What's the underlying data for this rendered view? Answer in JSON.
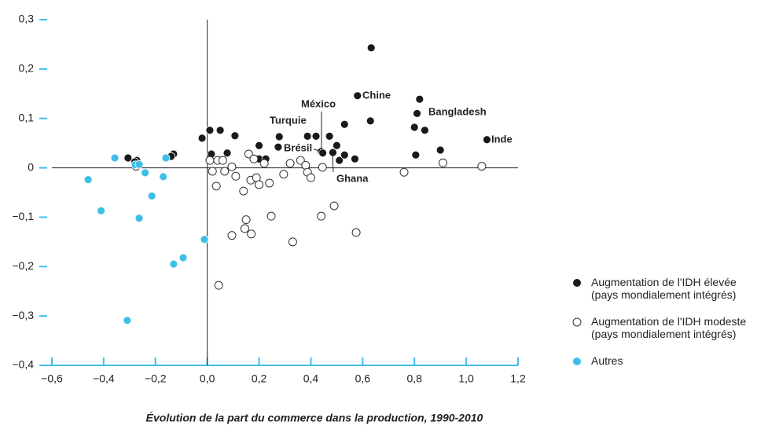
{
  "chart_data": {
    "type": "scatter",
    "xlabel": "Évolution de la part du commerce dans la production, 1990-2010",
    "xlim": [
      -0.6,
      1.2
    ],
    "xticks": [
      {
        "value": -0.6,
        "label": "−0,6"
      },
      {
        "value": -0.4,
        "label": "−0,4"
      },
      {
        "value": -0.2,
        "label": "−0,2"
      },
      {
        "value": 0,
        "label": "0,0"
      },
      {
        "value": 0.2,
        "label": "0,2"
      },
      {
        "value": 0.4,
        "label": "0,4"
      },
      {
        "value": 0.6,
        "label": "0,6"
      },
      {
        "value": 0.8,
        "label": "0,8"
      },
      {
        "value": 1.0,
        "label": "1,0"
      },
      {
        "value": 1.2,
        "label": "1,2"
      }
    ],
    "ylim": [
      -0.4,
      0.3
    ],
    "yticks": [
      {
        "value": -0.4,
        "label": "−0,4"
      },
      {
        "value": -0.3,
        "label": "−0,3"
      },
      {
        "value": -0.2,
        "label": "−0,2"
      },
      {
        "value": -0.1,
        "label": "−0,1"
      },
      {
        "value": 0,
        "label": "0"
      },
      {
        "value": 0.1,
        "label": "0,1"
      },
      {
        "value": 0.2,
        "label": "0,2"
      },
      {
        "value": 0.3,
        "label": "0,3"
      }
    ],
    "legend": "lower right",
    "series": [
      {
        "name": "Augmentation de l'IDH élevée\n(pays mondialement intégrés)",
        "color": "#1a1a1a",
        "marker": "filled",
        "x": [
          -0.306,
          -0.272,
          -0.28,
          -0.13,
          -0.14,
          -0.02,
          0.01,
          0.05,
          0.016,
          0.077,
          0.107,
          0.2,
          0.2,
          0.226,
          0.278,
          0.274,
          0.387,
          0.42,
          0.44,
          0.446,
          0.472,
          0.5,
          0.485,
          0.51,
          0.53,
          0.53,
          0.57,
          0.58,
          0.633,
          0.63,
          0.8,
          0.81,
          0.82,
          0.84,
          0.805,
          0.9,
          1.08
        ],
        "values": [
          0.02,
          0.015,
          0.012,
          0.028,
          0.023,
          0.06,
          0.076,
          0.076,
          0.028,
          0.03,
          0.065,
          0.045,
          0.018,
          0.018,
          0.063,
          0.042,
          0.064,
          0.064,
          0.033,
          0.03,
          0.064,
          0.045,
          0.031,
          0.015,
          0.026,
          0.088,
          0.018,
          0.146,
          0.243,
          0.095,
          0.082,
          0.11,
          0.139,
          0.076,
          0.026,
          0.036,
          0.057
        ]
      },
      {
        "name": "Augmentation de l'IDH modeste\n(pays mondialement intégrés)",
        "color": "#333333",
        "marker": "open",
        "x": [
          -0.275,
          0.01,
          0.02,
          0.04,
          0.035,
          0.06,
          0.067,
          0.095,
          0.11,
          0.095,
          0.14,
          0.16,
          0.168,
          0.18,
          0.19,
          0.2,
          0.22,
          0.24,
          0.15,
          0.145,
          0.17,
          0.247,
          0.295,
          0.32,
          0.33,
          0.36,
          0.38,
          0.387,
          0.4,
          0.445,
          0.44,
          0.49,
          0.575,
          0.76,
          0.91,
          1.06,
          0.044
        ],
        "values": [
          0.003,
          0.015,
          -0.007,
          0.015,
          -0.037,
          0.015,
          -0.007,
          0.002,
          -0.017,
          -0.137,
          -0.047,
          0.028,
          -0.025,
          0.018,
          -0.02,
          -0.034,
          0.009,
          -0.031,
          -0.105,
          -0.123,
          -0.134,
          -0.098,
          -0.013,
          0.009,
          -0.15,
          0.015,
          0.005,
          -0.009,
          -0.02,
          0.001,
          -0.098,
          -0.077,
          -0.131,
          -0.009,
          0.01,
          0.003,
          -0.238
        ]
      },
      {
        "name": "Autres",
        "color": "#3fbfe8",
        "marker": "filled",
        "x": [
          -0.46,
          -0.41,
          -0.357,
          -0.278,
          -0.263,
          -0.263,
          -0.24,
          -0.214,
          -0.17,
          -0.16,
          -0.13,
          -0.093,
          -0.011,
          -0.309
        ],
        "values": [
          -0.024,
          -0.087,
          0.02,
          0.006,
          0.007,
          -0.102,
          -0.01,
          -0.057,
          -0.018,
          0.02,
          -0.195,
          -0.182,
          -0.145,
          -0.309
        ]
      }
    ],
    "annotations": [
      "Chine",
      "Inde",
      "Bangladesh",
      "Turquie",
      "México",
      "Brésil",
      "Ghana"
    ]
  }
}
